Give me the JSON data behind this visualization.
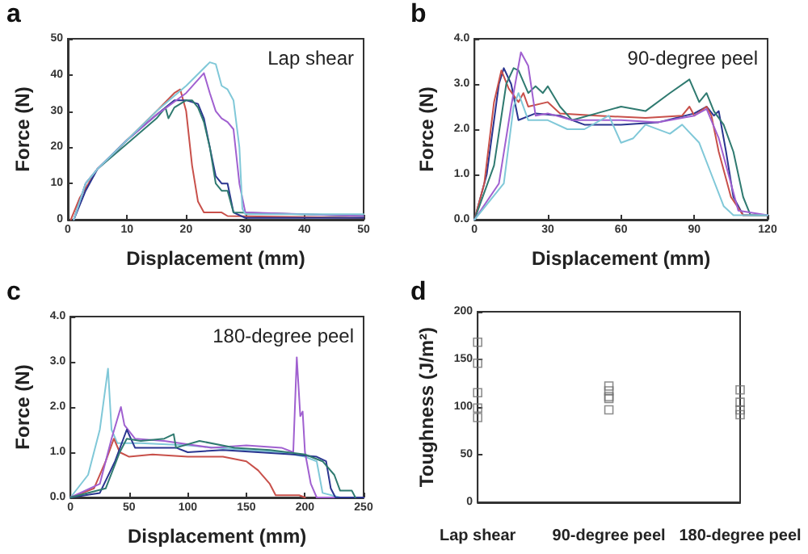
{
  "chart_data": [
    {
      "type": "line",
      "title": "a",
      "annotations": [
        "Lap shear"
      ],
      "xlabel": "Displacement (mm)",
      "ylabel": "Force (N)",
      "xlim": [
        0,
        50
      ],
      "xticks": [
        0,
        10,
        20,
        30,
        40,
        50
      ],
      "ylim": [
        0,
        50
      ],
      "yticks": [
        0,
        10,
        20,
        30,
        40,
        50
      ],
      "marker": "none",
      "grid": false,
      "series": [
        {
          "color": "#c8504a",
          "x": [
            0.5,
            2,
            5,
            10,
            15,
            18,
            19,
            20,
            21,
            22,
            23,
            26,
            27,
            50
          ],
          "values": [
            0,
            6,
            14,
            22,
            30,
            35,
            36,
            30,
            15,
            5,
            2,
            2,
            1,
            0.5
          ]
        },
        {
          "color": "#2a3590",
          "x": [
            1,
            3,
            5,
            10,
            15,
            18,
            20,
            22,
            23,
            24,
            25,
            26,
            27,
            28,
            30,
            50
          ],
          "values": [
            0,
            8,
            14,
            22,
            29,
            33,
            33,
            32,
            28,
            20,
            12,
            10,
            10,
            2,
            0.5,
            0.5
          ]
        },
        {
          "color": "#2f7a70",
          "x": [
            1,
            3,
            5,
            10,
            15,
            16.5,
            17,
            18,
            20,
            21,
            22,
            23,
            24,
            25,
            26,
            27,
            28,
            50
          ],
          "values": [
            0,
            10,
            14,
            21,
            28,
            31,
            28,
            31,
            33,
            33,
            31,
            27,
            20,
            10,
            8,
            8,
            2,
            1
          ]
        },
        {
          "color": "#a060d0",
          "x": [
            1,
            3,
            5,
            10,
            15,
            20,
            23,
            24,
            25,
            26,
            27,
            28,
            29,
            30,
            50
          ],
          "values": [
            0,
            10,
            14,
            22,
            29,
            35,
            40.5,
            35,
            30,
            28,
            27,
            25,
            10,
            2,
            1
          ]
        },
        {
          "color": "#80c8d8",
          "x": [
            1,
            3,
            5,
            10,
            15,
            20,
            24,
            25,
            26,
            27,
            28,
            29,
            29.5,
            30,
            50
          ],
          "values": [
            0,
            10,
            14,
            22,
            30,
            37,
            43.5,
            43,
            37,
            36,
            33,
            20,
            3,
            1.5,
            1.5
          ]
        }
      ]
    },
    {
      "type": "line",
      "title": "b",
      "annotations": [
        "90-degree peel"
      ],
      "xlabel": "Displacement (mm)",
      "ylabel": "Force (N)",
      "xlim": [
        0,
        120
      ],
      "xticks": [
        0,
        30,
        60,
        90,
        120
      ],
      "ylim": [
        0,
        4
      ],
      "yticks": [
        {
          "value": 0,
          "label": "0.0"
        },
        {
          "value": 1,
          "label": "1.0"
        },
        {
          "value": 2,
          "label": "2.0"
        },
        {
          "value": 3,
          "label": "3.0"
        },
        {
          "value": 4,
          "label": "4.0"
        }
      ],
      "marker": "none",
      "grid": false,
      "series": [
        {
          "color": "#2a3590",
          "x": [
            0,
            5,
            10,
            12,
            15,
            18,
            25,
            35,
            45,
            60,
            75,
            90,
            95,
            98,
            100,
            103,
            106,
            110,
            120
          ],
          "values": [
            0,
            1,
            3.0,
            3.35,
            3.0,
            2.2,
            2.35,
            2.3,
            2.1,
            2.1,
            2.15,
            2.35,
            2.5,
            2.3,
            2.4,
            1.5,
            0.5,
            0.1,
            0.1
          ]
        },
        {
          "color": "#c8504a",
          "x": [
            0,
            4,
            8,
            11,
            14,
            18,
            20,
            22,
            30,
            35,
            50,
            70,
            85,
            88,
            90,
            95,
            97,
            100,
            105,
            110,
            120
          ],
          "values": [
            0,
            0.8,
            2.6,
            3.3,
            2.9,
            2.6,
            2.8,
            2.5,
            2.6,
            2.35,
            2.3,
            2.25,
            2.3,
            2.5,
            2.3,
            2.5,
            2.3,
            1.5,
            0.5,
            0.1,
            0.1
          ]
        },
        {
          "color": "#2f7a70",
          "x": [
            0,
            8,
            13,
            16,
            18,
            22,
            25,
            28,
            30,
            35,
            40,
            50,
            60,
            70,
            80,
            88,
            92,
            95,
            98,
            102,
            106,
            110,
            113,
            120
          ],
          "values": [
            0,
            1.2,
            3.0,
            3.35,
            3.3,
            2.8,
            2.95,
            2.8,
            2.95,
            2.5,
            2.2,
            2.35,
            2.5,
            2.4,
            2.8,
            3.1,
            2.6,
            2.8,
            2.4,
            2.1,
            1.5,
            0.5,
            0.1,
            0.1
          ]
        },
        {
          "color": "#a060d0",
          "x": [
            0,
            10,
            15,
            19,
            22,
            25,
            30,
            40,
            50,
            60,
            75,
            90,
            95,
            100,
            104,
            108,
            120
          ],
          "values": [
            0,
            0.8,
            2.5,
            3.7,
            3.4,
            2.3,
            2.35,
            2.2,
            2.2,
            2.2,
            2.15,
            2.3,
            2.45,
            1.8,
            1.0,
            0.2,
            0.1
          ]
        },
        {
          "color": "#80c8d8",
          "x": [
            0,
            12,
            16,
            18,
            22,
            30,
            38,
            45,
            55,
            60,
            65,
            70,
            80,
            85,
            92,
            97,
            102,
            106,
            120
          ],
          "values": [
            0,
            0.8,
            2.5,
            2.8,
            2.2,
            2.2,
            2.0,
            2.0,
            2.3,
            1.7,
            1.8,
            2.1,
            1.9,
            2.1,
            1.7,
            1.0,
            0.3,
            0.1,
            0.1
          ]
        }
      ]
    },
    {
      "type": "line",
      "title": "c",
      "annotations": [
        "180-degree peel"
      ],
      "xlabel": "Displacement (mm)",
      "ylabel": "Force (N)",
      "xlim": [
        0,
        250
      ],
      "xticks": [
        0,
        50,
        100,
        150,
        200,
        250
      ],
      "ylim": [
        0,
        4
      ],
      "yticks": [
        {
          "value": 0,
          "label": "0.0"
        },
        {
          "value": 1,
          "label": "1.0"
        },
        {
          "value": 2,
          "label": "2.0"
        },
        {
          "value": 3,
          "label": "3.0"
        },
        {
          "value": 4,
          "label": "4.0"
        }
      ],
      "marker": "none",
      "grid": false,
      "series": [
        {
          "color": "#80c8d8",
          "x": [
            0,
            15,
            25,
            32,
            35,
            40,
            60,
            100,
            150,
            180,
            200,
            210,
            215,
            230
          ],
          "values": [
            0,
            0.5,
            1.5,
            2.85,
            1.5,
            1.2,
            1.2,
            1.15,
            1.05,
            1.0,
            0.9,
            0.8,
            0.1,
            0
          ]
        },
        {
          "color": "#c8504a",
          "x": [
            0,
            20,
            30,
            37,
            42,
            50,
            70,
            100,
            130,
            150,
            160,
            170,
            175,
            195,
            200
          ],
          "values": [
            0,
            0.2,
            0.8,
            1.3,
            1.0,
            0.9,
            0.95,
            0.9,
            0.9,
            0.8,
            0.6,
            0.3,
            0.05,
            0.05,
            0
          ]
        },
        {
          "color": "#a060d0",
          "x": [
            0,
            25,
            35,
            43,
            46,
            55,
            80,
            120,
            150,
            180,
            190,
            193,
            196,
            198,
            200,
            205,
            210,
            250
          ],
          "values": [
            0,
            0.3,
            1.3,
            2.0,
            1.6,
            1.3,
            1.25,
            1.1,
            1.15,
            1.1,
            1.0,
            3.1,
            1.8,
            1.9,
            1.0,
            0.3,
            0,
            0
          ]
        },
        {
          "color": "#2a3590",
          "x": [
            0,
            25,
            38,
            48,
            55,
            70,
            90,
            100,
            130,
            160,
            190,
            210,
            218,
            222,
            226,
            250
          ],
          "values": [
            0,
            0.1,
            0.8,
            1.5,
            1.1,
            1.1,
            1.1,
            1.0,
            1.05,
            1.0,
            0.95,
            0.9,
            0.8,
            0.2,
            0,
            0
          ]
        },
        {
          "color": "#2f7a70",
          "x": [
            0,
            30,
            42,
            48,
            60,
            80,
            88,
            90,
            110,
            140,
            170,
            200,
            215,
            225,
            230,
            240,
            243
          ],
          "values": [
            0,
            0.2,
            1.0,
            1.3,
            1.25,
            1.3,
            1.4,
            1.1,
            1.25,
            1.1,
            1.05,
            0.95,
            0.8,
            0.5,
            0.15,
            0.15,
            0
          ]
        }
      ]
    },
    {
      "type": "scatter",
      "title": "d",
      "ylabel": "Toughness (J/m²)",
      "categories": [
        "Lap shear",
        "90-degree peel",
        "180-degree peel"
      ],
      "ylim": [
        0,
        200
      ],
      "yticks": [
        0,
        50,
        100,
        150,
        200
      ],
      "marker": "square",
      "grid": false,
      "series": [
        {
          "color": "#707070",
          "x": [
            "Lap shear",
            "Lap shear",
            "Lap shear",
            "Lap shear",
            "Lap shear",
            "90-degree peel",
            "90-degree peel",
            "90-degree peel",
            "90-degree peel",
            "90-degree peel",
            "180-degree peel",
            "180-degree peel",
            "180-degree peel",
            "180-degree peel"
          ],
          "values": [
            168,
            146,
            115,
            99,
            89,
            122,
            117,
            111,
            109,
            97,
            118,
            105,
            97,
            92
          ]
        }
      ]
    }
  ]
}
